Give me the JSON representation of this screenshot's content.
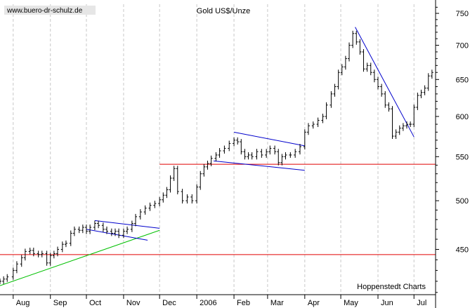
{
  "chart_data": {
    "type": "ohlc",
    "title": "Gold US$/Unze",
    "watermark": "www.buero-dr-schulz.de",
    "source": "Hoppenstedt Charts",
    "y_scale": "log",
    "ylim": [
      408,
      765
    ],
    "y_ticks": [
      450,
      500,
      550,
      600,
      650,
      700,
      750
    ],
    "x_ticks": [
      {
        "date": "2005-08-01",
        "label": "Aug"
      },
      {
        "date": "2005-09-01",
        "label": "Sep"
      },
      {
        "date": "2005-10-01",
        "label": "Oct"
      },
      {
        "date": "2005-11-01",
        "label": "Nov"
      },
      {
        "date": "2005-12-01",
        "label": "Dec"
      },
      {
        "date": "2006-01-01",
        "label": "2006"
      },
      {
        "date": "2006-02-01",
        "label": "Feb"
      },
      {
        "date": "2006-03-01",
        "label": "Mar"
      },
      {
        "date": "2006-04-01",
        "label": "Apr"
      },
      {
        "date": "2006-05-01",
        "label": "May"
      },
      {
        "date": "2006-06-01",
        "label": "Jun"
      },
      {
        "date": "2006-07-01",
        "label": "Jul"
      }
    ],
    "xlim": [
      "2005-07-21",
      "2006-07-19"
    ],
    "grid": "vertical dashed at month starts",
    "series": [
      {
        "values": [
          [
            "2005-07-21",
            420
          ],
          [
            "2005-07-24",
            422
          ],
          [
            "2005-07-27",
            424
          ],
          [
            "2005-08-01",
            430
          ],
          [
            "2005-08-04",
            436
          ],
          [
            "2005-08-08",
            442
          ],
          [
            "2005-08-11",
            448
          ],
          [
            "2005-08-15",
            449
          ],
          [
            "2005-08-18",
            446
          ],
          [
            "2005-08-22",
            445
          ],
          [
            "2005-08-25",
            446
          ],
          [
            "2005-08-29",
            437
          ],
          [
            "2005-09-01",
            444
          ],
          [
            "2005-09-04",
            446
          ],
          [
            "2005-09-07",
            450
          ],
          [
            "2005-09-11",
            455
          ],
          [
            "2005-09-14",
            456
          ],
          [
            "2005-09-18",
            466
          ],
          [
            "2005-09-21",
            470
          ],
          [
            "2005-09-25",
            469
          ],
          [
            "2005-09-28",
            472
          ],
          [
            "2005-10-01",
            468
          ],
          [
            "2005-10-04",
            472
          ],
          [
            "2005-10-08",
            476
          ],
          [
            "2005-10-11",
            474
          ],
          [
            "2005-10-15",
            470
          ],
          [
            "2005-10-18",
            468
          ],
          [
            "2005-10-22",
            466
          ],
          [
            "2005-10-25",
            468
          ],
          [
            "2005-10-28",
            464
          ],
          [
            "2005-11-01",
            468
          ],
          [
            "2005-11-04",
            470
          ],
          [
            "2005-11-08",
            476
          ],
          [
            "2005-11-11",
            483
          ],
          [
            "2005-11-15",
            488
          ],
          [
            "2005-11-19",
            492
          ],
          [
            "2005-11-23",
            495
          ],
          [
            "2005-11-27",
            497
          ],
          [
            "2005-12-01",
            501
          ],
          [
            "2005-12-04",
            506
          ],
          [
            "2005-12-07",
            512
          ],
          [
            "2005-12-10",
            525
          ],
          [
            "2005-12-13",
            536
          ],
          [
            "2005-12-16",
            510
          ],
          [
            "2005-12-20",
            500
          ],
          [
            "2005-12-24",
            504
          ],
          [
            "2005-12-28",
            500
          ],
          [
            "2006-01-01",
            515
          ],
          [
            "2006-01-04",
            530
          ],
          [
            "2006-01-07",
            538
          ],
          [
            "2006-01-10",
            542
          ],
          [
            "2006-01-13",
            548
          ],
          [
            "2006-01-17",
            552
          ],
          [
            "2006-01-20",
            557
          ],
          [
            "2006-01-24",
            560
          ],
          [
            "2006-01-28",
            566
          ],
          [
            "2006-02-01",
            570
          ],
          [
            "2006-02-04",
            568
          ],
          [
            "2006-02-07",
            556
          ],
          [
            "2006-02-10",
            550
          ],
          [
            "2006-02-13",
            552
          ],
          [
            "2006-02-16",
            550
          ],
          [
            "2006-02-20",
            556
          ],
          [
            "2006-02-24",
            552
          ],
          [
            "2006-02-28",
            556
          ],
          [
            "2006-03-03",
            560
          ],
          [
            "2006-03-07",
            556
          ],
          [
            "2006-03-10",
            543
          ],
          [
            "2006-03-13",
            550
          ],
          [
            "2006-03-16",
            552
          ],
          [
            "2006-03-20",
            552
          ],
          [
            "2006-03-24",
            556
          ],
          [
            "2006-03-28",
            562
          ],
          [
            "2006-04-01",
            580
          ],
          [
            "2006-04-04",
            588
          ],
          [
            "2006-04-08",
            590
          ],
          [
            "2006-04-12",
            595
          ],
          [
            "2006-04-16",
            600
          ],
          [
            "2006-04-19",
            615
          ],
          [
            "2006-04-23",
            630
          ],
          [
            "2006-04-26",
            640
          ],
          [
            "2006-04-29",
            660
          ],
          [
            "2006-05-02",
            668
          ],
          [
            "2006-05-05",
            680
          ],
          [
            "2006-05-08",
            700
          ],
          [
            "2006-05-11",
            718
          ],
          [
            "2006-05-14",
            705
          ],
          [
            "2006-05-17",
            690
          ],
          [
            "2006-05-20",
            665
          ],
          [
            "2006-05-23",
            670
          ],
          [
            "2006-05-26",
            660
          ],
          [
            "2006-05-29",
            650
          ],
          [
            "2006-06-01",
            640
          ],
          [
            "2006-06-04",
            630
          ],
          [
            "2006-06-07",
            615
          ],
          [
            "2006-06-10",
            610
          ],
          [
            "2006-06-13",
            575
          ],
          [
            "2006-06-16",
            580
          ],
          [
            "2006-06-19",
            585
          ],
          [
            "2006-06-22",
            588
          ],
          [
            "2006-06-25",
            590
          ],
          [
            "2006-06-28",
            590
          ],
          [
            "2006-07-01",
            612
          ],
          [
            "2006-07-04",
            628
          ],
          [
            "2006-07-07",
            632
          ],
          [
            "2006-07-10",
            638
          ],
          [
            "2006-07-13",
            655
          ],
          [
            "2006-07-16",
            660
          ]
        ]
      }
    ],
    "horizontal_lines": [
      {
        "value": 541,
        "color": "#e00000"
      },
      {
        "value": 445,
        "color": "#e00000"
      }
    ],
    "trend_lines": [
      {
        "from": [
          "2005-07-21",
          416
        ],
        "to": [
          "2005-12-01",
          469
        ],
        "color": "#00c000"
      },
      {
        "from": [
          "2005-10-08",
          479
        ],
        "to": [
          "2005-12-01",
          471
        ],
        "color": "#0000cc"
      },
      {
        "from": [
          "2005-10-01",
          470
        ],
        "to": [
          "2005-11-21",
          459
        ],
        "color": "#0000cc"
      },
      {
        "from": [
          "2006-02-01",
          580
        ],
        "to": [
          "2006-04-01",
          563
        ],
        "color": "#0000cc"
      },
      {
        "from": [
          "2006-01-15",
          545
        ],
        "to": [
          "2006-04-01",
          534
        ],
        "color": "#0000cc"
      },
      {
        "from": [
          "2006-05-13",
          728
        ],
        "to": [
          "2006-07-01",
          574
        ],
        "color": "#0000cc"
      }
    ]
  },
  "colors": {
    "support_line": "#e00000",
    "trend_green": "#00c000",
    "channel_blue": "#0000cc",
    "grid": "#c8c8c8"
  }
}
